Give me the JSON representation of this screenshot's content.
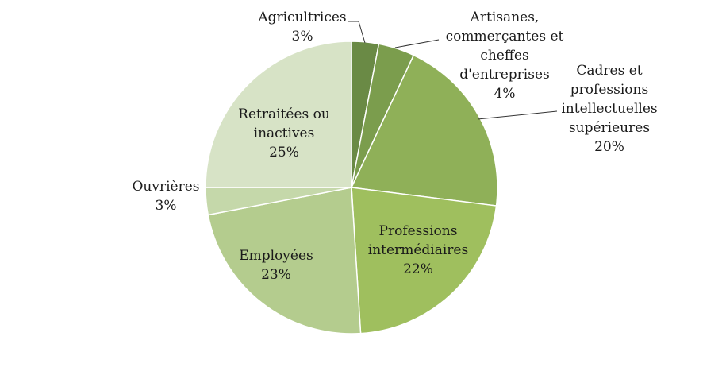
{
  "chart_data": {
    "type": "pie",
    "title": "",
    "slices": [
      {
        "label": [
          "Agricultrices"
        ],
        "value_label": "3%",
        "value": 3,
        "color": "#6a8a45"
      },
      {
        "label": [
          "Artisanes,",
          "commerçantes et",
          "cheffes",
          "d'entreprises"
        ],
        "value_label": "4%",
        "value": 4,
        "color": "#7b9d4d"
      },
      {
        "label": [
          "Cadres et",
          "professions",
          "intellectuelles",
          "supérieures"
        ],
        "value_label": "20%",
        "value": 20,
        "color": "#8fb058"
      },
      {
        "label": [
          "Professions",
          "intermédiaires"
        ],
        "value_label": "22%",
        "value": 22,
        "color": "#9fbf5e"
      },
      {
        "label": [
          "Employées"
        ],
        "value_label": "23%",
        "value": 23,
        "color": "#b4cc8e"
      },
      {
        "label": [
          "Ouvrières"
        ],
        "value_label": "3%",
        "value": 3,
        "color": "#c5d8aa"
      },
      {
        "label": [
          "Retraitées ou",
          "inactives"
        ],
        "value_label": "25%",
        "value": 25,
        "color": "#d7e3c6"
      }
    ],
    "legend": "none",
    "label_placement": [
      "outside",
      "outside",
      "outside",
      "inside",
      "inside",
      "outside",
      "inside"
    ]
  }
}
